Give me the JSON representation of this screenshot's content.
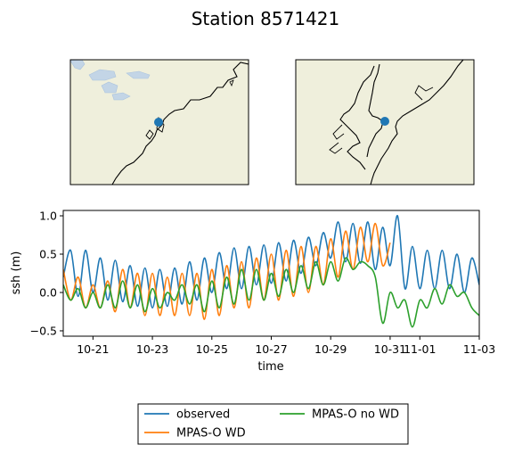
{
  "figure": {
    "title": "Station 8571421"
  },
  "maps": [
    {
      "name": "regional-map",
      "station_marker_color": "#1f77b4"
    },
    {
      "name": "local-map",
      "station_marker_color": "#1f77b4"
    }
  ],
  "colors": {
    "land": "#efefdc",
    "water_body": "#c3d5e6",
    "coastline": "#000000",
    "observed": "#1f77b4",
    "wd": "#ff7f0e",
    "nowd": "#2ca02c"
  },
  "chart_data": {
    "type": "line",
    "xlabel": "time",
    "ylabel": "ssh (m)",
    "xlim": [
      "2012-10-20",
      "2012-11-03"
    ],
    "ylim": [
      -0.57,
      1.07
    ],
    "yticks": [
      -0.5,
      0.0,
      0.5,
      1.0
    ],
    "ytick_labels": [
      "−0.5",
      "0.0",
      "0.5",
      "1.0"
    ],
    "xticks": [
      "2012-10-21",
      "2012-10-23",
      "2012-10-25",
      "2012-10-27",
      "2012-10-29",
      "2012-10-31",
      "2012-11-01",
      "2012-11-03"
    ],
    "xtick_labels": [
      "10-21",
      "10-23",
      "10-25",
      "10-27",
      "10-29",
      "10-31",
      "11-01",
      "11-03"
    ],
    "legend": {
      "placement": "bottom-center",
      "columns": 2
    },
    "series": [
      {
        "name": "observed",
        "x": [
          "2012-10-20 00:00",
          "2012-10-20 06:00",
          "2012-10-20 12:00",
          "2012-10-20 18:00",
          "2012-10-21 00:00",
          "2012-10-21 06:00",
          "2012-10-21 12:00",
          "2012-10-21 18:00",
          "2012-10-22 00:00",
          "2012-10-22 06:00",
          "2012-10-22 12:00",
          "2012-10-22 18:00",
          "2012-10-23 00:00",
          "2012-10-23 06:00",
          "2012-10-23 12:00",
          "2012-10-23 18:00",
          "2012-10-24 00:00",
          "2012-10-24 06:00",
          "2012-10-24 12:00",
          "2012-10-24 18:00",
          "2012-10-25 00:00",
          "2012-10-25 06:00",
          "2012-10-25 12:00",
          "2012-10-25 18:00",
          "2012-10-26 00:00",
          "2012-10-26 06:00",
          "2012-10-26 12:00",
          "2012-10-26 18:00",
          "2012-10-27 00:00",
          "2012-10-27 06:00",
          "2012-10-27 12:00",
          "2012-10-27 18:00",
          "2012-10-28 00:00",
          "2012-10-28 06:00",
          "2012-10-28 12:00",
          "2012-10-28 18:00",
          "2012-10-29 00:00",
          "2012-10-29 06:00",
          "2012-10-29 12:00",
          "2012-10-29 18:00",
          "2012-10-30 00:00",
          "2012-10-30 06:00",
          "2012-10-30 12:00",
          "2012-10-30 18:00",
          "2012-10-31 00:00",
          "2012-10-31 06:00",
          "2012-10-31 12:00",
          "2012-10-31 18:00",
          "2012-11-01 00:00",
          "2012-11-01 06:00",
          "2012-11-01 12:00",
          "2012-11-01 18:00",
          "2012-11-02 00:00",
          "2012-11-02 06:00",
          "2012-11-02 12:00",
          "2012-11-02 18:00",
          "2012-11-03 00:00"
        ],
        "y": [
          0.2,
          0.55,
          -0.05,
          0.55,
          0.0,
          0.45,
          -0.1,
          0.42,
          -0.12,
          0.35,
          -0.18,
          0.32,
          -0.2,
          0.3,
          -0.18,
          0.32,
          -0.15,
          0.4,
          -0.1,
          0.45,
          0.0,
          0.52,
          0.05,
          0.58,
          0.05,
          0.6,
          0.1,
          0.62,
          0.12,
          0.65,
          0.15,
          0.68,
          0.25,
          0.72,
          0.35,
          0.78,
          0.45,
          0.92,
          0.4,
          0.9,
          0.38,
          0.92,
          0.3,
          0.85,
          0.35,
          1.0,
          0.05,
          0.6,
          0.05,
          0.55,
          0.05,
          0.55,
          0.05,
          0.5,
          0.0,
          0.45,
          0.1
        ]
      },
      {
        "name": "MPAS-O WD",
        "x": [
          "2012-10-20 00:00",
          "2012-10-20 06:00",
          "2012-10-20 12:00",
          "2012-10-20 18:00",
          "2012-10-21 00:00",
          "2012-10-21 06:00",
          "2012-10-21 12:00",
          "2012-10-21 18:00",
          "2012-10-22 00:00",
          "2012-10-22 06:00",
          "2012-10-22 12:00",
          "2012-10-22 18:00",
          "2012-10-23 00:00",
          "2012-10-23 06:00",
          "2012-10-23 12:00",
          "2012-10-23 18:00",
          "2012-10-24 00:00",
          "2012-10-24 06:00",
          "2012-10-24 12:00",
          "2012-10-24 18:00",
          "2012-10-25 00:00",
          "2012-10-25 06:00",
          "2012-10-25 12:00",
          "2012-10-25 18:00",
          "2012-10-26 00:00",
          "2012-10-26 06:00",
          "2012-10-26 12:00",
          "2012-10-26 18:00",
          "2012-10-27 00:00",
          "2012-10-27 06:00",
          "2012-10-27 12:00",
          "2012-10-27 18:00",
          "2012-10-28 00:00",
          "2012-10-28 06:00",
          "2012-10-28 12:00",
          "2012-10-28 18:00",
          "2012-10-29 00:00",
          "2012-10-29 06:00",
          "2012-10-29 12:00",
          "2012-10-29 18:00",
          "2012-10-30 00:00",
          "2012-10-30 06:00",
          "2012-10-30 12:00",
          "2012-10-30 18:00",
          "2012-10-31 00:00"
        ],
        "y": [
          0.3,
          -0.1,
          0.2,
          -0.2,
          0.1,
          -0.2,
          0.15,
          -0.25,
          0.3,
          -0.2,
          0.25,
          -0.3,
          0.25,
          -0.3,
          0.2,
          -0.3,
          0.25,
          -0.3,
          0.25,
          -0.35,
          0.3,
          -0.3,
          0.35,
          -0.2,
          0.4,
          -0.2,
          0.45,
          -0.1,
          0.5,
          -0.1,
          0.55,
          -0.05,
          0.6,
          0.0,
          0.6,
          0.1,
          0.7,
          0.2,
          0.8,
          0.3,
          0.85,
          0.4,
          0.9,
          0.35,
          0.65
        ]
      },
      {
        "name": "MPAS-O no WD",
        "x": [
          "2012-10-20 00:00",
          "2012-10-20 06:00",
          "2012-10-20 12:00",
          "2012-10-20 18:00",
          "2012-10-21 00:00",
          "2012-10-21 06:00",
          "2012-10-21 12:00",
          "2012-10-21 18:00",
          "2012-10-22 00:00",
          "2012-10-22 06:00",
          "2012-10-22 12:00",
          "2012-10-22 18:00",
          "2012-10-23 00:00",
          "2012-10-23 06:00",
          "2012-10-23 12:00",
          "2012-10-23 18:00",
          "2012-10-24 00:00",
          "2012-10-24 06:00",
          "2012-10-24 12:00",
          "2012-10-24 18:00",
          "2012-10-25 00:00",
          "2012-10-25 06:00",
          "2012-10-25 12:00",
          "2012-10-25 18:00",
          "2012-10-26 00:00",
          "2012-10-26 06:00",
          "2012-10-26 12:00",
          "2012-10-26 18:00",
          "2012-10-27 00:00",
          "2012-10-27 06:00",
          "2012-10-27 12:00",
          "2012-10-27 18:00",
          "2012-10-28 00:00",
          "2012-10-28 06:00",
          "2012-10-28 12:00",
          "2012-10-28 18:00",
          "2012-10-29 00:00",
          "2012-10-29 06:00",
          "2012-10-29 12:00",
          "2012-10-29 18:00",
          "2012-10-30 00:00",
          "2012-10-30 06:00",
          "2012-10-30 12:00",
          "2012-10-30 18:00",
          "2012-10-31 00:00",
          "2012-10-31 06:00",
          "2012-10-31 12:00",
          "2012-10-31 18:00",
          "2012-11-01 00:00",
          "2012-11-01 06:00",
          "2012-11-01 12:00",
          "2012-11-01 18:00",
          "2012-11-02 00:00",
          "2012-11-02 06:00",
          "2012-11-02 12:00",
          "2012-11-02 18:00",
          "2012-11-03 00:00"
        ],
        "y": [
          0.1,
          -0.1,
          0.05,
          -0.2,
          0.0,
          -0.2,
          0.1,
          -0.2,
          0.15,
          -0.2,
          0.1,
          -0.25,
          0.05,
          -0.2,
          0.0,
          -0.1,
          0.1,
          -0.15,
          0.1,
          -0.25,
          0.15,
          -0.2,
          0.2,
          -0.15,
          0.3,
          -0.1,
          0.3,
          -0.1,
          0.25,
          -0.05,
          0.3,
          0.0,
          0.35,
          0.05,
          0.4,
          0.1,
          0.4,
          0.15,
          0.45,
          0.3,
          0.4,
          0.35,
          0.2,
          -0.4,
          0.0,
          -0.2,
          -0.1,
          -0.45,
          -0.1,
          -0.2,
          0.05,
          -0.15,
          0.1,
          -0.05,
          0.0,
          -0.2,
          -0.3
        ]
      }
    ]
  }
}
